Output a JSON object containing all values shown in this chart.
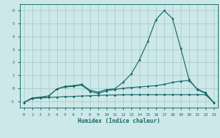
{
  "xlabel": "Humidex (Indice chaleur)",
  "ylabel": "",
  "background_color": "#cce8e8",
  "grid_color": "#aacccc",
  "line_color": "#1a6b6b",
  "x_values": [
    0,
    1,
    2,
    3,
    4,
    5,
    6,
    7,
    8,
    9,
    10,
    11,
    12,
    13,
    14,
    15,
    16,
    17,
    18,
    19,
    20,
    21,
    22,
    23
  ],
  "series1": [
    -1.1,
    -0.75,
    -0.7,
    -0.6,
    -0.05,
    0.15,
    0.2,
    0.3,
    -0.15,
    -0.3,
    -0.1,
    -0.05,
    0.45,
    1.1,
    2.2,
    3.6,
    5.3,
    6.0,
    5.4,
    3.1,
    0.7,
    -0.1,
    -0.4,
    -1.1
  ],
  "series2": [
    -1.1,
    -0.75,
    -0.7,
    -0.6,
    -0.05,
    0.1,
    0.15,
    0.25,
    -0.25,
    -0.4,
    -0.2,
    -0.1,
    0.0,
    0.05,
    0.1,
    0.15,
    0.2,
    0.3,
    0.45,
    0.55,
    0.6,
    -0.05,
    -0.35,
    -1.1
  ],
  "series3": [
    -1.1,
    -0.8,
    -0.75,
    -0.72,
    -0.68,
    -0.65,
    -0.63,
    -0.6,
    -0.58,
    -0.55,
    -0.53,
    -0.52,
    -0.51,
    -0.5,
    -0.5,
    -0.5,
    -0.5,
    -0.5,
    -0.5,
    -0.5,
    -0.5,
    -0.5,
    -0.5,
    -1.1
  ],
  "ylim": [
    -1.5,
    6.5
  ],
  "xlim": [
    -0.5,
    23.5
  ],
  "yticks": [
    -1,
    0,
    1,
    2,
    3,
    4,
    5,
    6
  ],
  "xticks": [
    0,
    1,
    2,
    3,
    4,
    5,
    6,
    7,
    8,
    9,
    10,
    11,
    12,
    13,
    14,
    15,
    16,
    17,
    18,
    19,
    20,
    21,
    22,
    23
  ]
}
